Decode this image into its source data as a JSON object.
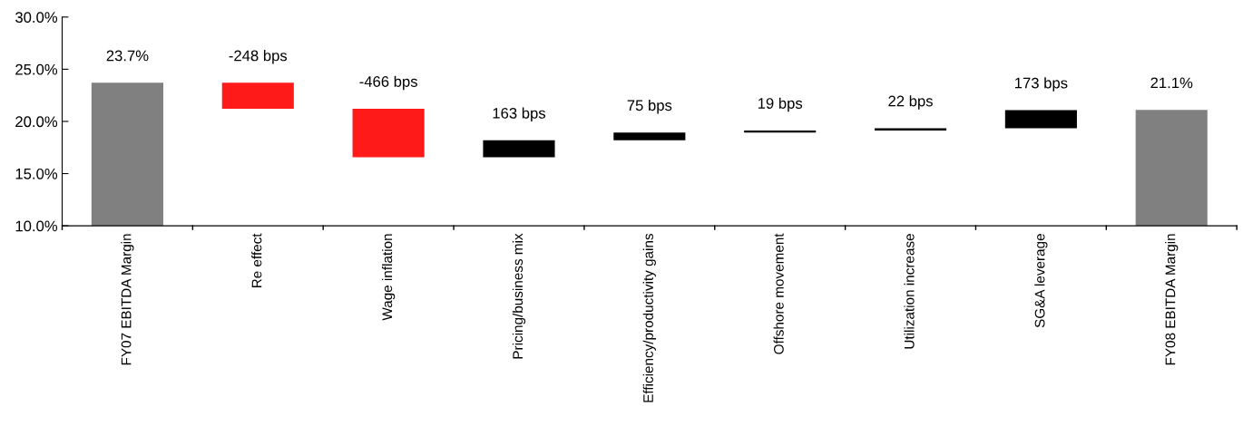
{
  "chart_data": {
    "type": "bar",
    "categories": [
      "FY07 EBITDA Margin",
      "Re effect",
      "Wage inflation",
      "Pricing/business mix",
      "Efficiency/productivity gains",
      "Offshore movement",
      "Utilization increase",
      "SG&A leverage",
      "FY08 EBITDA Margin"
    ],
    "base": [
      10,
      23.7,
      21.22,
      16.56,
      18.19,
      18.94,
      19.13,
      19.35,
      10
    ],
    "values": [
      13.7,
      -2.48,
      -4.66,
      1.63,
      0.75,
      0.19,
      0.22,
      1.73,
      11.1
    ],
    "annotations": [
      {
        "text": "23.7%",
        "x": "FY07 EBITDA Margin",
        "y": 23.7
      },
      {
        "text": "-248 bps",
        "x": "Re effect",
        "y": 23.7
      },
      {
        "text": "-466 bps",
        "x": "Wage inflation",
        "y": 21.22
      },
      {
        "text": "163 bps",
        "x": "Pricing/business mix",
        "y": 18.19
      },
      {
        "text": "75 bps",
        "x": "Efficiency/productivity gains",
        "y": 18.94
      },
      {
        "text": "19 bps",
        "x": "Offshore movement",
        "y": 19.13
      },
      {
        "text": "22 bps",
        "x": "Utilization increase",
        "y": 19.35
      },
      {
        "text": "173 bps",
        "x": "SG&A leverage",
        "y": 21.08
      },
      {
        "text": "21.1%",
        "x": "FY08 EBITDA Margin",
        "y": 21.1
      }
    ],
    "colors": [
      "#808080",
      "#ff1a1a",
      "#ff1a1a",
      "#000000",
      "#000000",
      "#000000",
      "#000000",
      "#000000",
      "#808080"
    ],
    "ylim": [
      10,
      30
    ],
    "yticks": [
      {
        "value": 10,
        "label": "10.0%"
      },
      {
        "value": 15,
        "label": "15.0%"
      },
      {
        "value": 20,
        "label": "20.0%"
      },
      {
        "value": 25,
        "label": "25.0%"
      },
      {
        "value": 30,
        "label": "30.0%"
      }
    ],
    "grid": false
  }
}
